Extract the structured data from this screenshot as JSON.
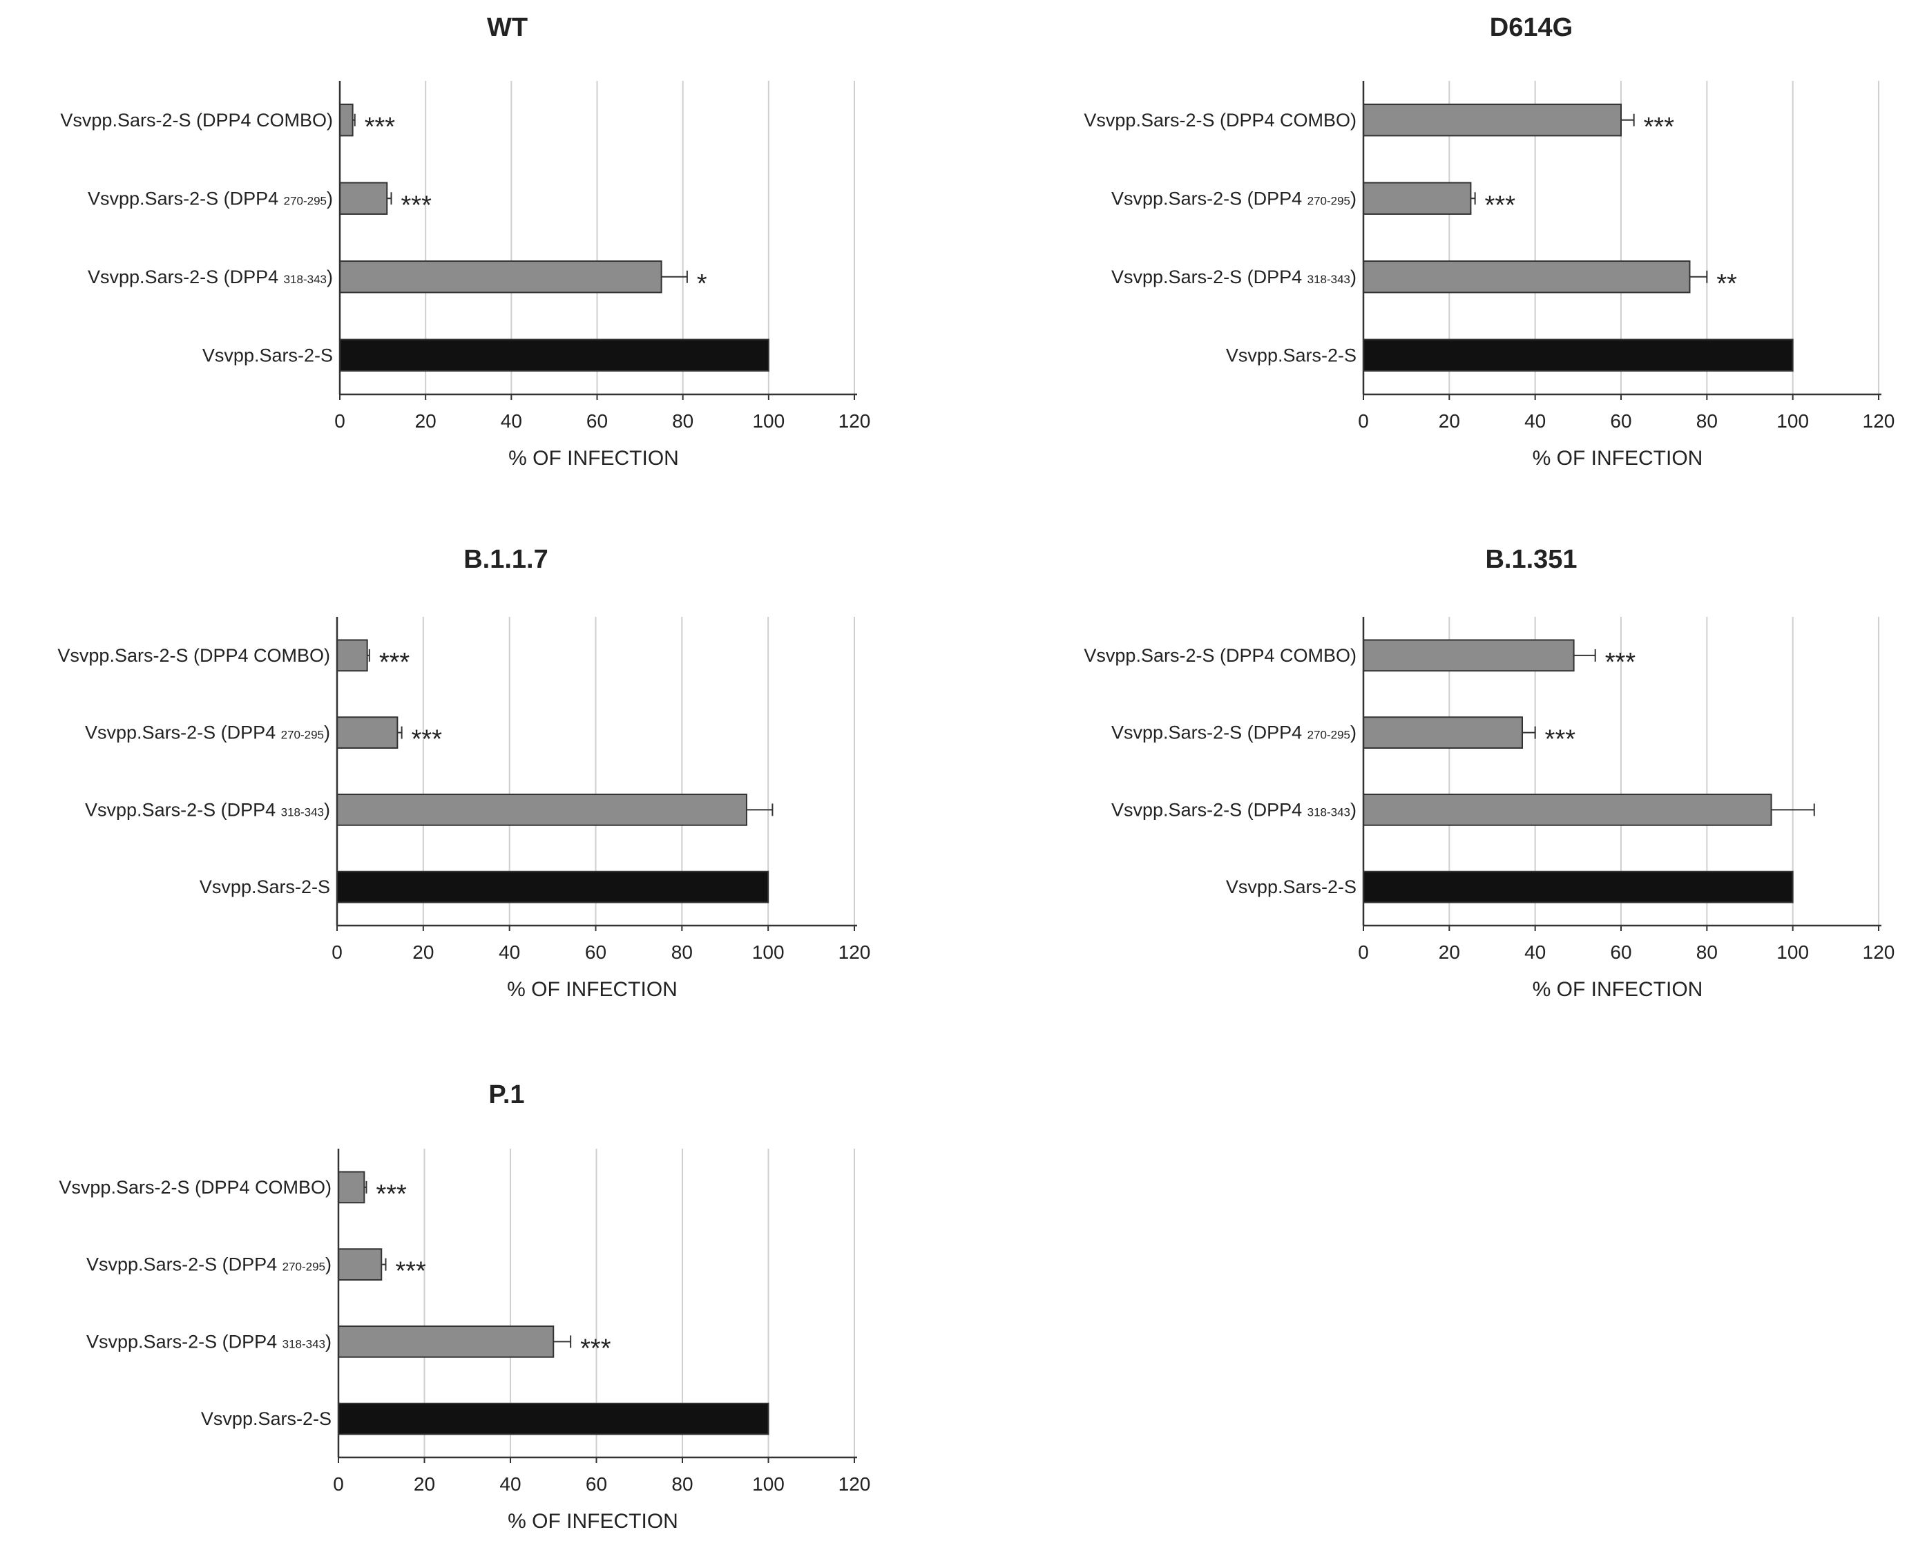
{
  "figure": {
    "panels": [
      {
        "id": "wt",
        "title": "WT"
      },
      {
        "id": "d614g",
        "title": "D614G"
      },
      {
        "id": "b117",
        "title": "B.1.1.7"
      },
      {
        "id": "b1351",
        "title": "B.1.351"
      },
      {
        "id": "p1",
        "title": "P.1"
      }
    ]
  },
  "chart_data": [
    {
      "type": "bar",
      "orientation": "horizontal",
      "title": "WT",
      "xlabel": "% OF INFECTION",
      "ylabel": "",
      "xlim": [
        0,
        120
      ],
      "xticks": [
        0,
        20,
        40,
        60,
        80,
        100,
        120
      ],
      "grid": "vertical",
      "categories": [
        {
          "base": "Vsvpp.Sars-2-S (DPP4 COMBO)",
          "sub": "",
          "close": ""
        },
        {
          "base": "Vsvpp.Sars-2-S (DPP4 ",
          "sub": "270-295",
          "close": ")"
        },
        {
          "base": "Vsvpp.Sars-2-S (DPP4 ",
          "sub": "318-343",
          "close": ")"
        },
        {
          "base": "Vsvpp.Sars-2-S",
          "sub": "",
          "close": ""
        }
      ],
      "values": [
        3,
        11,
        75,
        100
      ],
      "errors": [
        0.5,
        1,
        6,
        0
      ],
      "significance": [
        "***",
        "***",
        "*",
        ""
      ],
      "colors": [
        "#8c8c8c",
        "#8c8c8c",
        "#8c8c8c",
        "#111111"
      ]
    },
    {
      "type": "bar",
      "orientation": "horizontal",
      "title": "D614G",
      "xlabel": "% OF INFECTION",
      "ylabel": "",
      "xlim": [
        0,
        120
      ],
      "xticks": [
        0,
        20,
        40,
        60,
        80,
        100,
        120
      ],
      "grid": "vertical",
      "categories": [
        {
          "base": "Vsvpp.Sars-2-S (DPP4 COMBO)",
          "sub": "",
          "close": ""
        },
        {
          "base": "Vsvpp.Sars-2-S (DPP4 ",
          "sub": "270-295",
          "close": ")"
        },
        {
          "base": "Vsvpp.Sars-2-S (DPP4 ",
          "sub": "318-343",
          "close": ")"
        },
        {
          "base": "Vsvpp.Sars-2-S",
          "sub": "",
          "close": ""
        }
      ],
      "values": [
        60,
        25,
        76,
        100
      ],
      "errors": [
        3,
        1,
        4,
        0
      ],
      "significance": [
        "***",
        "***",
        "**",
        ""
      ],
      "colors": [
        "#8c8c8c",
        "#8c8c8c",
        "#8c8c8c",
        "#111111"
      ]
    },
    {
      "type": "bar",
      "orientation": "horizontal",
      "title": "B.1.1.7",
      "xlabel": "% OF INFECTION",
      "ylabel": "",
      "xlim": [
        0,
        120
      ],
      "xticks": [
        0,
        20,
        40,
        60,
        80,
        100,
        120
      ],
      "grid": "vertical",
      "categories": [
        {
          "base": "Vsvpp.Sars-2-S (DPP4 COMBO)",
          "sub": "",
          "close": ""
        },
        {
          "base": "Vsvpp.Sars-2-S (DPP4 ",
          "sub": "270-295",
          "close": ")"
        },
        {
          "base": "Vsvpp.Sars-2-S (DPP4 ",
          "sub": "318-343",
          "close": ")"
        },
        {
          "base": "Vsvpp.Sars-2-S",
          "sub": "",
          "close": ""
        }
      ],
      "values": [
        7,
        14,
        95,
        100
      ],
      "errors": [
        0.5,
        1,
        6,
        0
      ],
      "significance": [
        "***",
        "***",
        "",
        ""
      ],
      "colors": [
        "#8c8c8c",
        "#8c8c8c",
        "#8c8c8c",
        "#111111"
      ]
    },
    {
      "type": "bar",
      "orientation": "horizontal",
      "title": "B.1.351",
      "xlabel": "% OF INFECTION",
      "ylabel": "",
      "xlim": [
        0,
        120
      ],
      "xticks": [
        0,
        20,
        40,
        60,
        80,
        100,
        120
      ],
      "grid": "vertical",
      "categories": [
        {
          "base": "Vsvpp.Sars-2-S (DPP4 COMBO)",
          "sub": "",
          "close": ""
        },
        {
          "base": "Vsvpp.Sars-2-S (DPP4 ",
          "sub": "270-295",
          "close": ")"
        },
        {
          "base": "Vsvpp.Sars-2-S (DPP4 ",
          "sub": "318-343",
          "close": ")"
        },
        {
          "base": "Vsvpp.Sars-2-S",
          "sub": "",
          "close": ""
        }
      ],
      "values": [
        49,
        37,
        95,
        100
      ],
      "errors": [
        5,
        3,
        10,
        0
      ],
      "significance": [
        "***",
        "***",
        "",
        ""
      ],
      "colors": [
        "#8c8c8c",
        "#8c8c8c",
        "#8c8c8c",
        "#111111"
      ]
    },
    {
      "type": "bar",
      "orientation": "horizontal",
      "title": "P.1",
      "xlabel": "% OF INFECTION",
      "ylabel": "",
      "xlim": [
        0,
        120
      ],
      "xticks": [
        0,
        20,
        40,
        60,
        80,
        100,
        120
      ],
      "grid": "vertical",
      "categories": [
        {
          "base": "Vsvpp.Sars-2-S (DPP4 COMBO)",
          "sub": "",
          "close": ""
        },
        {
          "base": "Vsvpp.Sars-2-S (DPP4 ",
          "sub": "270-295",
          "close": ")"
        },
        {
          "base": "Vsvpp.Sars-2-S (DPP4 ",
          "sub": "318-343",
          "close": ")"
        },
        {
          "base": "Vsvpp.Sars-2-S",
          "sub": "",
          "close": ""
        }
      ],
      "values": [
        6,
        10,
        50,
        100
      ],
      "errors": [
        0.5,
        1,
        4,
        0
      ],
      "significance": [
        "***",
        "***",
        "***",
        ""
      ],
      "colors": [
        "#8c8c8c",
        "#8c8c8c",
        "#8c8c8c",
        "#111111"
      ]
    }
  ]
}
